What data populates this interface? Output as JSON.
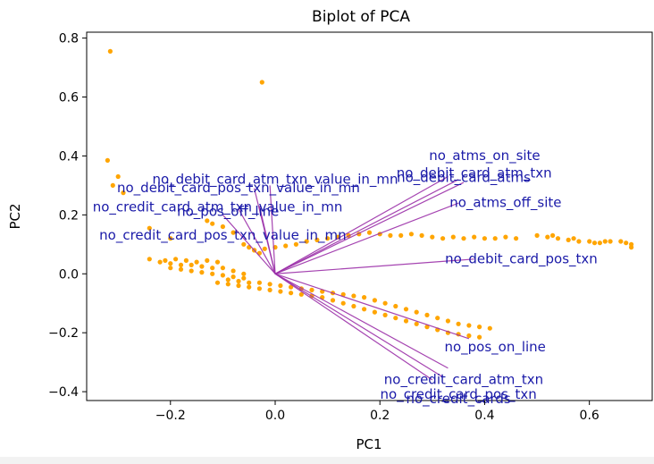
{
  "chart_data": {
    "type": "scatter",
    "title": "Biplot of PCA",
    "xlabel": "PC1",
    "ylabel": "PC2",
    "xlim": [
      -0.36,
      0.72
    ],
    "ylim": [
      -0.43,
      0.82
    ],
    "x_ticks": [
      -0.2,
      0.0,
      0.2,
      0.4,
      0.6
    ],
    "x_tick_labels": [
      "−0.2",
      "0.0",
      "0.2",
      "0.4",
      "0.6"
    ],
    "y_ticks": [
      -0.4,
      -0.2,
      0.0,
      0.2,
      0.4,
      0.6,
      0.8
    ],
    "y_tick_labels": [
      "−0.4",
      "−0.2",
      "0.0",
      "0.2",
      "0.4",
      "0.6",
      "0.8"
    ],
    "grid": false,
    "point_color": "#ffa500",
    "arrow_color": "#9b30a8",
    "label_color": "#1a1aa8",
    "points": [
      [
        -0.315,
        0.755
      ],
      [
        -0.025,
        0.65
      ],
      [
        -0.32,
        0.385
      ],
      [
        -0.3,
        0.33
      ],
      [
        -0.29,
        0.275
      ],
      [
        -0.31,
        0.3
      ],
      [
        -0.24,
        0.155
      ],
      [
        -0.2,
        0.12
      ],
      [
        -0.13,
        0.18
      ],
      [
        -0.12,
        0.17
      ],
      [
        -0.1,
        0.16
      ],
      [
        -0.08,
        0.14
      ],
      [
        -0.06,
        0.1
      ],
      [
        -0.05,
        0.09
      ],
      [
        -0.04,
        0.08
      ],
      [
        -0.03,
        0.07
      ],
      [
        -0.24,
        0.05
      ],
      [
        -0.22,
        0.04
      ],
      [
        -0.2,
        0.035
      ],
      [
        -0.18,
        0.03
      ],
      [
        -0.16,
        0.03
      ],
      [
        -0.14,
        0.025
      ],
      [
        -0.12,
        0.02
      ],
      [
        -0.1,
        0.02
      ],
      [
        -0.08,
        0.01
      ],
      [
        -0.06,
        0.0
      ],
      [
        -0.21,
        0.045
      ],
      [
        -0.19,
        0.05
      ],
      [
        -0.17,
        0.045
      ],
      [
        -0.15,
        0.04
      ],
      [
        -0.13,
        0.045
      ],
      [
        -0.11,
        0.04
      ],
      [
        -0.2,
        0.02
      ],
      [
        -0.18,
        0.015
      ],
      [
        -0.16,
        0.01
      ],
      [
        -0.14,
        0.005
      ],
      [
        -0.12,
        0.0
      ],
      [
        -0.1,
        -0.005
      ],
      [
        -0.08,
        -0.01
      ],
      [
        -0.06,
        -0.015
      ],
      [
        -0.11,
        -0.03
      ],
      [
        -0.09,
        -0.035
      ],
      [
        -0.07,
        -0.04
      ],
      [
        -0.05,
        -0.045
      ],
      [
        -0.03,
        -0.05
      ],
      [
        -0.01,
        -0.055
      ],
      [
        0.01,
        -0.06
      ],
      [
        0.03,
        -0.065
      ],
      [
        0.05,
        -0.07
      ],
      [
        0.07,
        -0.075
      ],
      [
        0.09,
        -0.08
      ],
      [
        0.11,
        -0.09
      ],
      [
        0.13,
        -0.1
      ],
      [
        0.15,
        -0.11
      ],
      [
        0.17,
        -0.12
      ],
      [
        0.19,
        -0.13
      ],
      [
        0.21,
        -0.14
      ],
      [
        0.23,
        -0.15
      ],
      [
        0.25,
        -0.16
      ],
      [
        0.27,
        -0.17
      ],
      [
        0.29,
        -0.18
      ],
      [
        0.31,
        -0.19
      ],
      [
        0.33,
        -0.2
      ],
      [
        0.35,
        -0.205
      ],
      [
        0.37,
        -0.21
      ],
      [
        0.39,
        -0.215
      ],
      [
        -0.09,
        -0.02
      ],
      [
        -0.07,
        -0.025
      ],
      [
        -0.05,
        -0.03
      ],
      [
        -0.03,
        -0.03
      ],
      [
        -0.01,
        -0.035
      ],
      [
        0.01,
        -0.04
      ],
      [
        0.03,
        -0.045
      ],
      [
        0.05,
        -0.05
      ],
      [
        0.07,
        -0.055
      ],
      [
        0.09,
        -0.06
      ],
      [
        0.11,
        -0.065
      ],
      [
        0.13,
        -0.07
      ],
      [
        0.15,
        -0.075
      ],
      [
        0.17,
        -0.08
      ],
      [
        0.19,
        -0.09
      ],
      [
        0.21,
        -0.1
      ],
      [
        0.23,
        -0.11
      ],
      [
        0.25,
        -0.12
      ],
      [
        0.27,
        -0.13
      ],
      [
        0.29,
        -0.14
      ],
      [
        0.31,
        -0.15
      ],
      [
        0.33,
        -0.16
      ],
      [
        0.35,
        -0.17
      ],
      [
        0.37,
        -0.175
      ],
      [
        0.39,
        -0.18
      ],
      [
        0.41,
        -0.185
      ],
      [
        -0.04,
        0.08
      ],
      [
        -0.02,
        0.085
      ],
      [
        0.0,
        0.09
      ],
      [
        0.02,
        0.095
      ],
      [
        0.04,
        0.1
      ],
      [
        0.06,
        0.11
      ],
      [
        0.08,
        0.115
      ],
      [
        0.1,
        0.12
      ],
      [
        0.12,
        0.125
      ],
      [
        0.14,
        0.13
      ],
      [
        0.16,
        0.135
      ],
      [
        0.18,
        0.14
      ],
      [
        0.2,
        0.135
      ],
      [
        0.22,
        0.13
      ],
      [
        0.24,
        0.13
      ],
      [
        0.26,
        0.135
      ],
      [
        0.28,
        0.13
      ],
      [
        0.3,
        0.125
      ],
      [
        0.32,
        0.12
      ],
      [
        0.34,
        0.125
      ],
      [
        0.36,
        0.12
      ],
      [
        0.38,
        0.125
      ],
      [
        0.4,
        0.12
      ],
      [
        0.42,
        0.12
      ],
      [
        0.44,
        0.125
      ],
      [
        0.46,
        0.12
      ],
      [
        0.5,
        0.13
      ],
      [
        0.52,
        0.125
      ],
      [
        0.54,
        0.12
      ],
      [
        0.56,
        0.115
      ],
      [
        0.58,
        0.11
      ],
      [
        0.6,
        0.11
      ],
      [
        0.62,
        0.105
      ],
      [
        0.64,
        0.11
      ],
      [
        0.66,
        0.11
      ],
      [
        0.68,
        0.1
      ],
      [
        0.68,
        0.09
      ],
      [
        0.67,
        0.105
      ],
      [
        0.63,
        0.11
      ],
      [
        0.61,
        0.105
      ],
      [
        0.57,
        0.12
      ],
      [
        0.53,
        0.13
      ]
    ],
    "loadings": [
      {
        "label": "no_atms_on_site",
        "x": 0.33,
        "y": 0.33,
        "tx": 0.4,
        "ty": 0.4
      },
      {
        "label": "no_debit_card_atm_txn",
        "x": 0.35,
        "y": 0.32,
        "tx": 0.38,
        "ty": 0.34
      },
      {
        "label": "no_debit_card_atm_txn_value_in_mn",
        "x": -0.01,
        "y": 0.3,
        "tx": 0.0,
        "ty": 0.32
      },
      {
        "label": "no_debit_card_atms",
        "x": 0.36,
        "y": 0.31,
        "tx": 0.36,
        "ty": 0.325
      },
      {
        "label": "no_atms_off_site",
        "x": 0.35,
        "y": 0.24,
        "tx": 0.44,
        "ty": 0.24
      },
      {
        "label": "no_debit_card_pos_txn_value_in_mn",
        "x": -0.04,
        "y": 0.29,
        "tx": -0.07,
        "ty": 0.29
      },
      {
        "label": "no_credit_card_atm_txn_value_in_mn",
        "x": -0.07,
        "y": 0.22,
        "tx": -0.11,
        "ty": 0.225
      },
      {
        "label": "no_pos_off_line",
        "x": -0.03,
        "y": 0.23,
        "tx": -0.09,
        "ty": 0.21
      },
      {
        "label": "no_credit_card_pos_txn_value_in_mn",
        "x": -0.1,
        "y": 0.2,
        "tx": -0.1,
        "ty": 0.13
      },
      {
        "label": "no_debit_card_pos_txn",
        "x": 0.38,
        "y": 0.05,
        "tx": 0.47,
        "ty": 0.05
      },
      {
        "label": "no_pos_on_line",
        "x": 0.37,
        "y": -0.22,
        "tx": 0.42,
        "ty": -0.25
      },
      {
        "label": "no_credit_card_atm_txn",
        "x": 0.33,
        "y": -0.32,
        "tx": 0.36,
        "ty": -0.36
      },
      {
        "label": "no_credit_card_pos_txn",
        "x": 0.32,
        "y": -0.35,
        "tx": 0.35,
        "ty": -0.41
      },
      {
        "label": "no_credit_cards",
        "x": 0.3,
        "y": -0.36,
        "tx": 0.35,
        "ty": -0.425
      }
    ]
  }
}
